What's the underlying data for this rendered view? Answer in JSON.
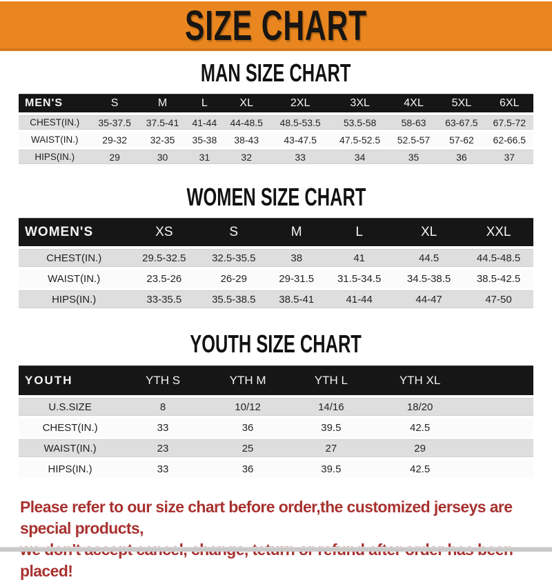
{
  "banner": {
    "title": "SIZE CHART"
  },
  "sections": [
    {
      "key": "men",
      "heading": "MAN SIZE CHART",
      "header_label": "MEN'S",
      "columns": [
        "S",
        "M",
        "L",
        "XL",
        "2XL",
        "3XL",
        "4XL",
        "5XL",
        "6XL"
      ],
      "trailing_blank": false,
      "rows": [
        {
          "label": "CHEST(IN.)",
          "shaded": true,
          "values": [
            "35-37.5",
            "37.5-41",
            "41-44",
            "44-48.5",
            "48.5-53.5",
            "53.5-58",
            "58-63",
            "63-67.5",
            "67.5-72"
          ]
        },
        {
          "label": "WAIST(IN.)",
          "shaded": false,
          "values": [
            "29-32",
            "32-35",
            "35-38",
            "38-43",
            "43-47.5",
            "47.5-52.5",
            "52.5-57",
            "57-62",
            "62-66.5"
          ]
        },
        {
          "label": "HIPS(IN.)",
          "shaded": true,
          "values": [
            "29",
            "30",
            "31",
            "32",
            "33",
            "34",
            "35",
            "36",
            "37"
          ]
        }
      ]
    },
    {
      "key": "women",
      "heading": "WOMEN SIZE CHART",
      "header_label": "WOMEN'S",
      "columns": [
        "XS",
        "S",
        "M",
        "L",
        "XL",
        "XXL"
      ],
      "trailing_blank": false,
      "rows": [
        {
          "label": "CHEST(IN.)",
          "shaded": true,
          "values": [
            "29.5-32.5",
            "32.5-35.5",
            "38",
            "41",
            "44.5",
            "44.5-48.5"
          ]
        },
        {
          "label": "WAIST(IN.)",
          "shaded": false,
          "values": [
            "23.5-26",
            "26-29",
            "29-31.5",
            "31.5-34.5",
            "34.5-38.5",
            "38.5-42.5"
          ]
        },
        {
          "label": "HIPS(IN.)",
          "shaded": true,
          "values": [
            "33-35.5",
            "35.5-38.5",
            "38.5-41",
            "41-44",
            "44-47",
            "47-50"
          ]
        }
      ]
    },
    {
      "key": "youth",
      "heading": "YOUTH SIZE CHART",
      "header_label": "YOUTH",
      "columns": [
        "YTH S",
        "YTH M",
        "YTH L",
        "YTH XL"
      ],
      "trailing_blank": true,
      "rows": [
        {
          "label": "U.S.SIZE",
          "shaded": true,
          "values": [
            "8",
            "10/12",
            "14/16",
            "18/20"
          ]
        },
        {
          "label": "CHEST(IN.)",
          "shaded": false,
          "values": [
            "33",
            "36",
            "39.5",
            "42.5"
          ]
        },
        {
          "label": "WAIST(IN.)",
          "shaded": true,
          "values": [
            "23",
            "25",
            "27",
            "29"
          ]
        },
        {
          "label": "HIPS(IN.)",
          "shaded": false,
          "values": [
            "33",
            "36",
            "39.5",
            "42.5"
          ]
        }
      ]
    }
  ],
  "notice": {
    "lines": [
      "Please refer to our size chart before order,the customized jerseys are special products,",
      "we don't accept cancel, change, teturn or refund after order has been placed!"
    ]
  },
  "colors": {
    "banner_bg": "#E98620",
    "banner_text": "#181512",
    "header_bar_bg": "#161616",
    "header_bar_text": "#FFFFFF",
    "shaded_row_bg": "#DEDEDE",
    "notice_text": "#A83230"
  }
}
